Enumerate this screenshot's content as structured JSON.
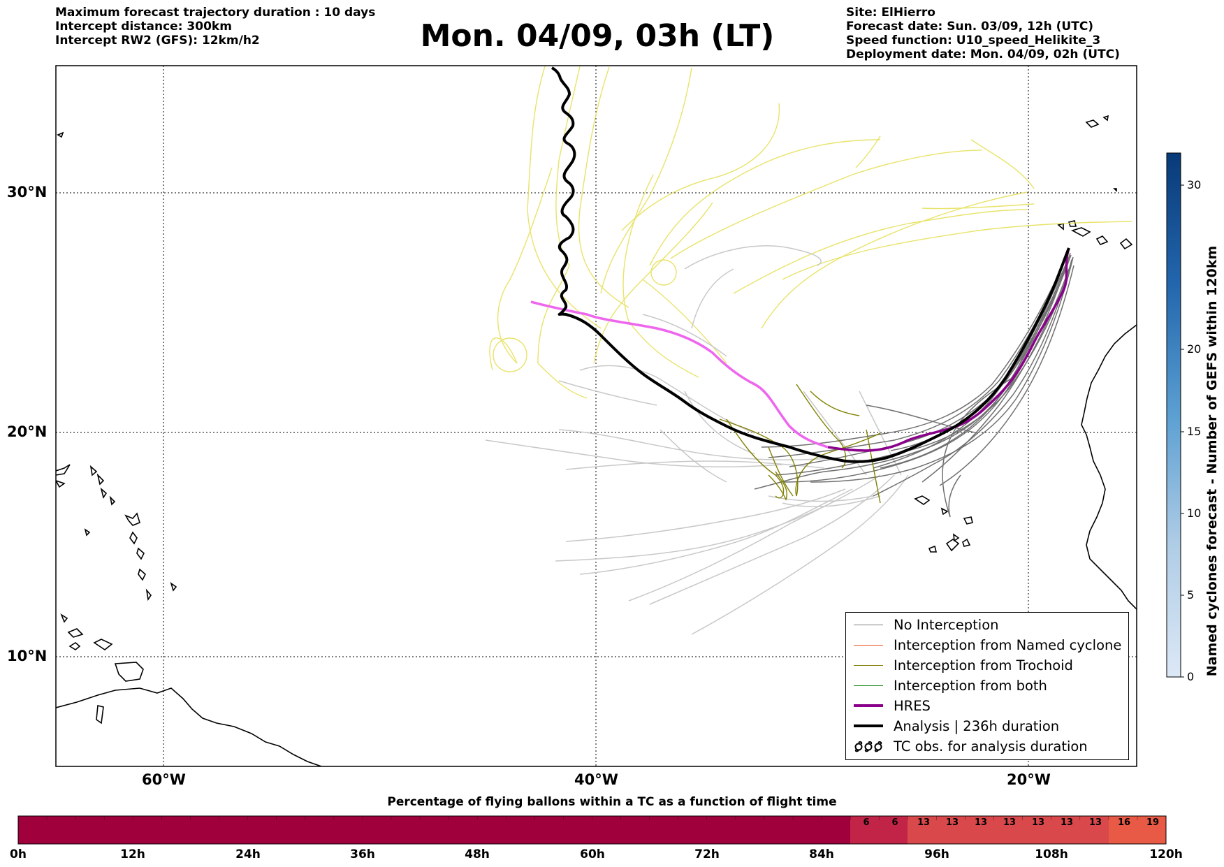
{
  "header_left": [
    "Maximum forecast trajectory duration : 10 days",
    "Intercept distance: 300km",
    "Intercept RW2 (GFS):  12km/h2"
  ],
  "header_right": [
    "Site: ElHierro",
    "Forecast date: Sun. 03/09, 12h (UTC)",
    "Speed function: U10_speed_Helikite_3",
    "Deployment date: Mon. 04/09, 02h (UTC)"
  ],
  "title": "Mon. 04/09, 03h (LT)",
  "map": {
    "lon_labels": [
      "60°W",
      "40°W",
      "20°W"
    ],
    "lat_labels": [
      "30°N",
      "20°N",
      "10°N"
    ]
  },
  "legend": {
    "items": [
      {
        "label": "No Interception",
        "color": "#808080"
      },
      {
        "label": "Interception from Named cyclone",
        "color": "#e8501e"
      },
      {
        "label": "Interception from Trochoid",
        "color": "#808000"
      },
      {
        "label": "Interception from both",
        "color": "#1a8a1a"
      },
      {
        "label": "HRES",
        "color": "#8b008b"
      },
      {
        "label": "Analysis | 236h duration",
        "color": "#000000"
      },
      {
        "label": "TC obs. for analysis duration",
        "icon": "tc-symbol-icon"
      }
    ]
  },
  "colorbar": {
    "title": "Named cyclones forecast - Number of GEFS within 120km",
    "ticks": [
      "0",
      "5",
      "10",
      "15",
      "20",
      "30"
    ],
    "range": [
      0,
      32
    ]
  },
  "bottom_bar": {
    "title": "Percentage of flying ballons within a TC as a function of flight time",
    "ticks": [
      "0h",
      "12h",
      "24h",
      "36h",
      "48h",
      "60h",
      "72h",
      "84h",
      "96h",
      "108h",
      "120h"
    ],
    "labeled_cells": [
      "6",
      "6",
      "13",
      "13",
      "13",
      "13",
      "13",
      "13",
      "13",
      "16",
      "19"
    ]
  }
}
